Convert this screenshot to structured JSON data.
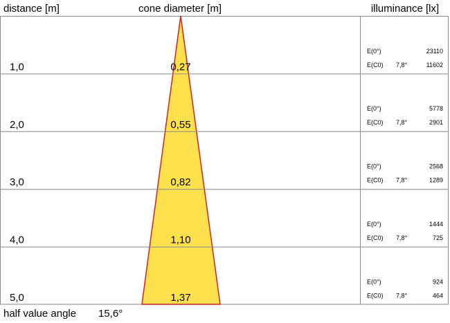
{
  "header": {
    "distance": "distance [m]",
    "cone": "cone diameter [m]",
    "illuminance": "illuminance [lx]"
  },
  "rows": [
    {
      "distance": "1,0",
      "diameter": "0,27",
      "e0_label": "E(0°)",
      "e0": 23110,
      "ec0_label": "E(C0)",
      "angle": "7,8°",
      "ec0": 11602
    },
    {
      "distance": "2,0",
      "diameter": "0,55",
      "e0_label": "E(0°)",
      "e0": 5778,
      "ec0_label": "E(C0)",
      "angle": "7,8°",
      "ec0": 2901
    },
    {
      "distance": "3,0",
      "diameter": "0,82",
      "e0_label": "E(0°)",
      "e0": 2568,
      "ec0_label": "E(C0)",
      "angle": "7,8°",
      "ec0": 1289
    },
    {
      "distance": "4,0",
      "diameter": "1,10",
      "e0_label": "E(0°)",
      "e0": 1444,
      "ec0_label": "E(C0)",
      "angle": "7,8°",
      "ec0": 725
    },
    {
      "distance": "5,0",
      "diameter": "1,37",
      "e0_label": "E(0°)",
      "e0": 924,
      "ec0_label": "E(C0)",
      "angle": "7,8°",
      "ec0": 464
    }
  ],
  "footer": {
    "label": "half value angle",
    "value": "15,6°"
  }
}
